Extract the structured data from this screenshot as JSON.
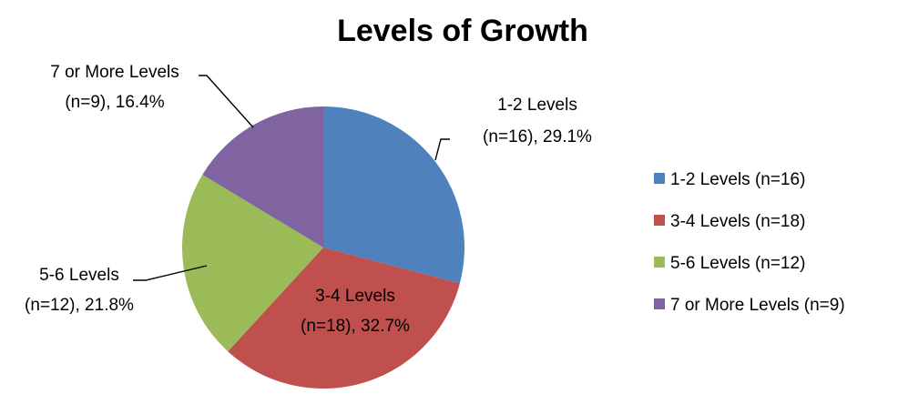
{
  "chart_data": {
    "type": "pie",
    "title": "Levels of Growth",
    "slices": [
      {
        "legend": "1-2 Levels (n=16)",
        "label_line1": "1-2 Levels",
        "label_line2": "(n=16), 29.1%",
        "n": 16,
        "percent": 29.1,
        "color": "#4F81BD"
      },
      {
        "legend": "3-4 Levels (n=18)",
        "label_line1": "3-4 Levels",
        "label_line2": "(n=18), 32.7%",
        "n": 18,
        "percent": 32.7,
        "color": "#C0504D"
      },
      {
        "legend": "5-6 Levels (n=12)",
        "label_line1": "5-6 Levels",
        "label_line2": "(n=12), 21.8%",
        "n": 12,
        "percent": 21.8,
        "color": "#9BBB59"
      },
      {
        "legend": "7 or More Levels (n=9)",
        "label_line1": "7 or More Levels",
        "label_line2": "(n=9), 16.4%",
        "n": 9,
        "percent": 16.4,
        "color": "#8064A2"
      }
    ],
    "legend_position": "right",
    "start_angle": "12 o'clock",
    "direction": "clockwise"
  }
}
